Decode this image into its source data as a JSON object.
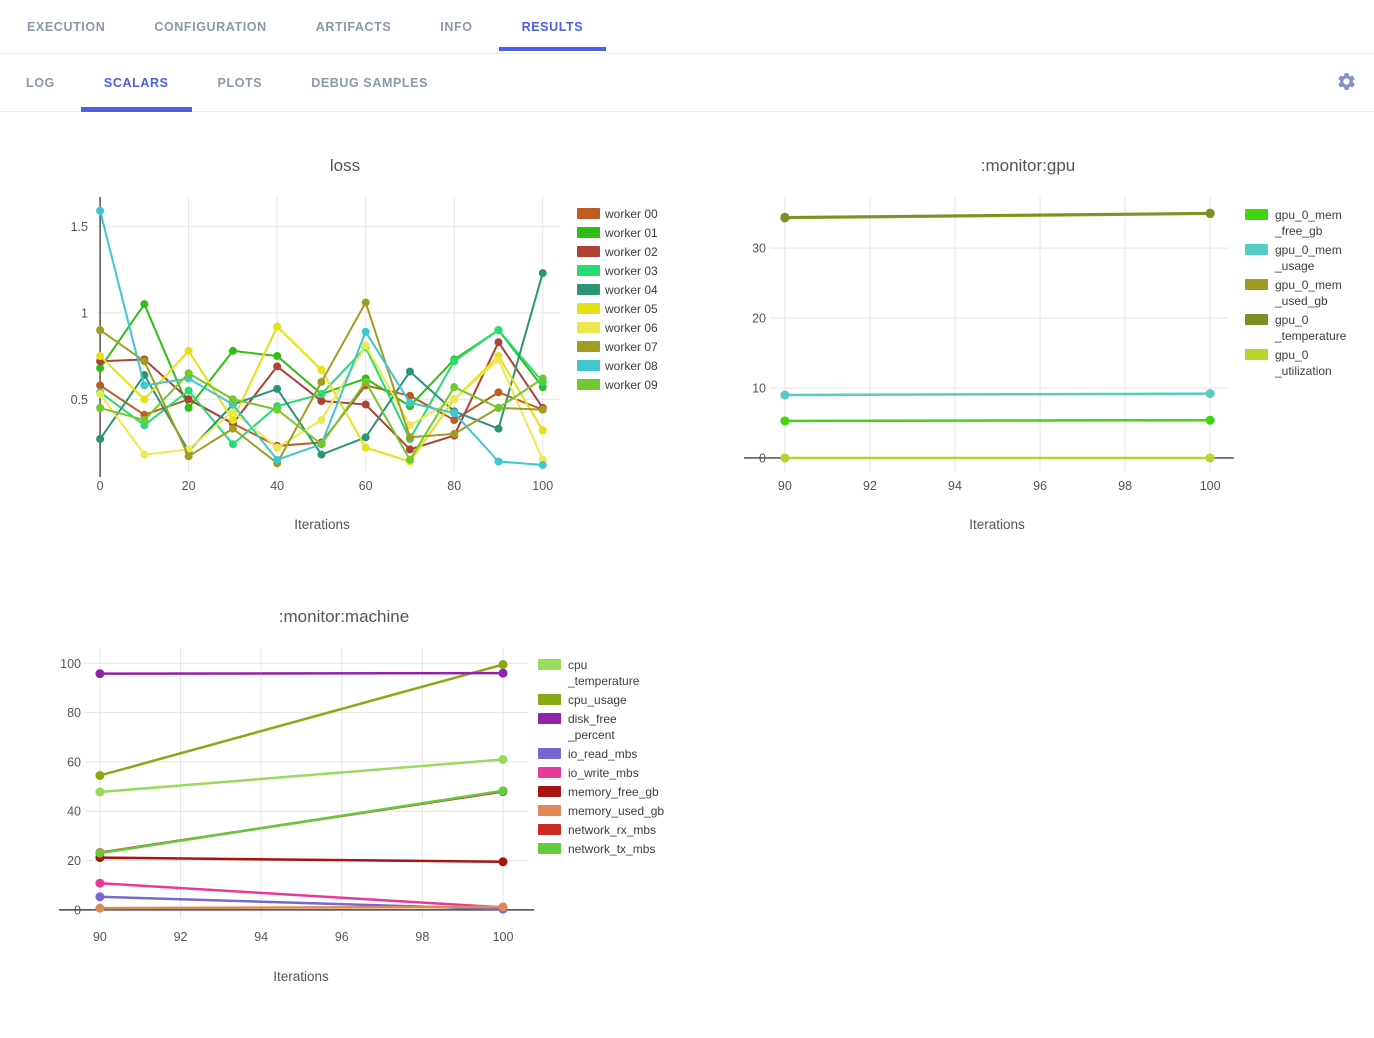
{
  "header": {
    "primary_tabs": [
      {
        "label": "EXECUTION",
        "active": false
      },
      {
        "label": "CONFIGURATION",
        "active": false
      },
      {
        "label": "ARTIFACTS",
        "active": false
      },
      {
        "label": "INFO",
        "active": false
      },
      {
        "label": "RESULTS",
        "active": true
      }
    ],
    "secondary_tabs": [
      {
        "label": "LOG",
        "active": false
      },
      {
        "label": "SCALARS",
        "active": true
      },
      {
        "label": "PLOTS",
        "active": false
      },
      {
        "label": "DEBUG SAMPLES",
        "active": false
      }
    ],
    "settings_icon": "gear-icon"
  },
  "colors": {
    "accent": "#4a5fe4",
    "tab_inactive": "#8b98a9",
    "grid": "#e5e5e5",
    "axis_line": "#444444",
    "tick_text": "#545454",
    "title_text": "#555555",
    "legend_text": "#3d3d3d",
    "gear_icon": "#8492c4"
  },
  "chart_data": [
    {
      "type": "line",
      "title": "loss",
      "xlabel": "Iterations",
      "grid": true,
      "legend_position": "right",
      "x": [
        0,
        10,
        20,
        30,
        40,
        50,
        60,
        70,
        80,
        90,
        100
      ],
      "x_ticks": [
        0,
        20,
        40,
        60,
        80,
        100
      ],
      "y_ticks": [
        0.5,
        1,
        1.5
      ],
      "xlim": [
        -0.7,
        103.9
      ],
      "ylim": [
        0.085,
        1.67
      ],
      "series": [
        {
          "name": "worker 00",
          "color": "#bf5b24",
          "values": [
            0.58,
            0.41,
            0.5,
            0.36,
            0.23,
            0.25,
            0.58,
            0.52,
            0.38,
            0.54,
            0.44
          ]
        },
        {
          "name": "worker 01",
          "color": "#2fbe14",
          "values": [
            0.68,
            1.05,
            0.45,
            0.78,
            0.75,
            0.53,
            0.62,
            0.46,
            0.73,
            0.9,
            0.57
          ]
        },
        {
          "name": "worker 02",
          "color": "#af4034",
          "values": [
            0.72,
            0.73,
            0.5,
            0.36,
            0.69,
            0.49,
            0.47,
            0.21,
            0.29,
            0.83,
            0.45
          ]
        },
        {
          "name": "worker 03",
          "color": "#27dc74",
          "values": [
            0.54,
            0.35,
            0.55,
            0.24,
            0.46,
            0.53,
            0.8,
            0.27,
            0.72,
            0.9,
            0.6
          ]
        },
        {
          "name": "worker 04",
          "color": "#2d9377",
          "values": [
            0.27,
            0.64,
            0.2,
            0.47,
            0.56,
            0.18,
            0.28,
            0.66,
            0.43,
            0.33,
            1.23
          ]
        },
        {
          "name": "worker 05",
          "color": "#e6e016",
          "values": [
            0.75,
            0.5,
            0.78,
            0.38,
            0.92,
            0.67,
            0.22,
            0.14,
            0.5,
            0.75,
            0.32
          ]
        },
        {
          "name": "worker 06",
          "color": "#ece84f",
          "values": [
            0.53,
            0.18,
            0.21,
            0.43,
            0.22,
            0.38,
            0.81,
            0.35,
            0.5,
            0.73,
            0.15
          ]
        },
        {
          "name": "worker 07",
          "color": "#a09e22",
          "values": [
            0.9,
            0.72,
            0.17,
            0.33,
            0.13,
            0.6,
            1.06,
            0.28,
            0.3,
            0.45,
            0.44
          ]
        },
        {
          "name": "worker 08",
          "color": "#3fc6d0",
          "values": [
            1.59,
            0.58,
            0.62,
            0.47,
            0.15,
            0.24,
            0.89,
            0.48,
            0.42,
            0.14,
            0.12
          ]
        },
        {
          "name": "worker 09",
          "color": "#71c82f",
          "values": [
            0.45,
            0.38,
            0.65,
            0.5,
            0.44,
            0.24,
            0.6,
            0.15,
            0.57,
            0.45,
            0.62
          ]
        }
      ]
    },
    {
      "type": "line",
      "title": ":monitor:gpu",
      "xlabel": "Iterations",
      "grid": true,
      "legend_position": "right",
      "x": [
        90,
        100
      ],
      "x_ticks": [
        90,
        92,
        94,
        96,
        98,
        100
      ],
      "y_ticks": [
        0,
        10,
        20,
        30
      ],
      "xlim": [
        89.65,
        100.42
      ],
      "ylim": [
        -1.86,
        37.3
      ],
      "series": [
        {
          "name": "gpu_0_mem_free_gb",
          "label_lines": [
            "gpu_0_mem",
            "_free_gb"
          ],
          "color": "#3fd60e",
          "values": [
            5.3,
            5.4
          ]
        },
        {
          "name": "gpu_0_mem_usage",
          "label_lines": [
            "gpu_0_mem",
            "_usage"
          ],
          "color": "#55cbc4",
          "values": [
            9.0,
            9.2
          ]
        },
        {
          "name": "gpu_0_mem_used_gb",
          "label_lines": [
            "gpu_0_mem",
            "_used_gb"
          ],
          "color": "#9c9b20",
          "values": [
            34.3,
            34.9
          ]
        },
        {
          "name": "gpu_0_temperature",
          "label_lines": [
            "gpu_0",
            "_temperature"
          ],
          "color": "#7d8f25",
          "values": [
            34.4,
            35.0
          ]
        },
        {
          "name": "gpu_0_utilization",
          "label_lines": [
            "gpu_0",
            "_utilization"
          ],
          "color": "#b8d42c",
          "values": [
            0,
            0
          ]
        }
      ]
    },
    {
      "type": "line",
      "title": ":monitor:machine",
      "xlabel": "Iterations",
      "grid": true,
      "legend_position": "right",
      "x": [
        90,
        100
      ],
      "x_ticks": [
        90,
        92,
        94,
        96,
        98,
        100
      ],
      "y_ticks": [
        0,
        20,
        40,
        60,
        80,
        100
      ],
      "xlim": [
        89.63,
        100.62
      ],
      "ylim": [
        -3.3,
        106.2
      ],
      "series": [
        {
          "name": "cpu_temperature",
          "label_lines": [
            "cpu",
            "_temperature"
          ],
          "color": "#97db5c",
          "values": [
            47.8,
            61.0
          ]
        },
        {
          "name": "cpu_usage",
          "label_lines": [
            "cpu_usage"
          ],
          "color": "#8aa816",
          "values": [
            54.5,
            99.5
          ]
        },
        {
          "name": "disk_free_percent",
          "label_lines": [
            "disk_free",
            "_percent"
          ],
          "color": "#8e24aa",
          "values": [
            95.8,
            96.0
          ]
        },
        {
          "name": "io_read_mbs",
          "label_lines": [
            "io_read_mbs"
          ],
          "color": "#7668d0",
          "values": [
            5.3,
            0.3
          ]
        },
        {
          "name": "io_write_mbs",
          "label_lines": [
            "io_write_mbs"
          ],
          "color": "#e8399a",
          "values": [
            10.8,
            1.0
          ]
        },
        {
          "name": "memory_free_gb",
          "label_lines": [
            "memory_free_gb"
          ],
          "color": "#a81410",
          "values": [
            21.2,
            19.5
          ]
        },
        {
          "name": "memory_used_gb",
          "label_lines": [
            "memory_used_gb"
          ],
          "color": "#de8a58",
          "values": [
            0.7,
            1.2
          ]
        },
        {
          "name": "network_rx_mbs",
          "label_lines": [
            "network_rx_mbs"
          ],
          "color": "#cc2a23",
          "values": [
            23.2,
            48.0
          ]
        },
        {
          "name": "network_tx_mbs",
          "label_lines": [
            "network_tx_mbs"
          ],
          "color": "#63cb3a",
          "values": [
            23.0,
            48.3
          ]
        }
      ]
    }
  ]
}
